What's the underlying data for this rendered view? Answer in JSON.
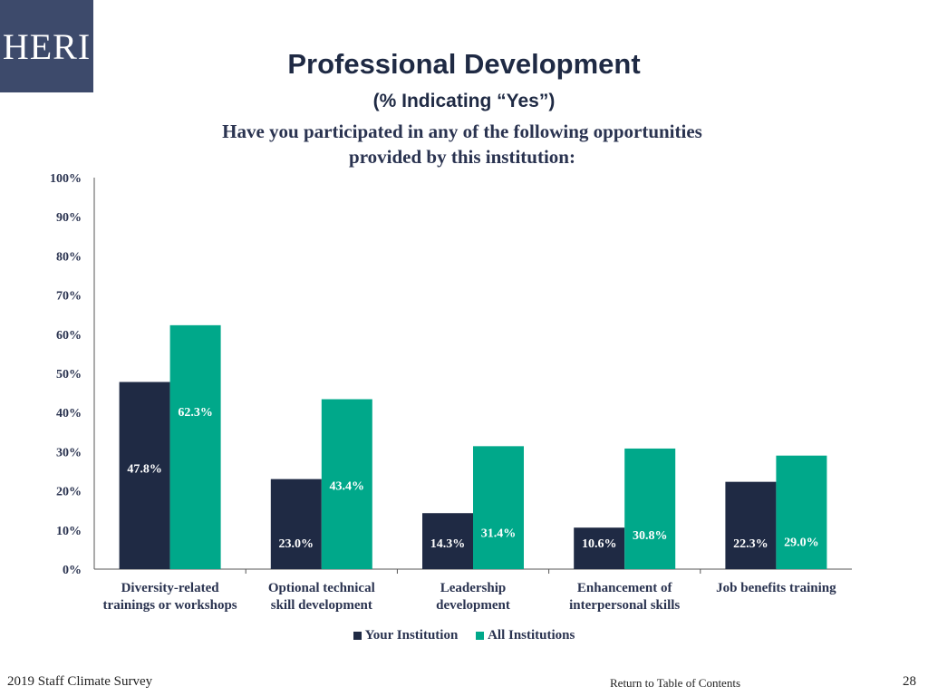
{
  "logo": {
    "text": "HERI"
  },
  "header": {
    "title": "Professional Development",
    "subtitle": "(% Indicating “Yes”)",
    "question_line1": "Have you participated in any of  the following opportunities",
    "question_line2": "provided by this institution:"
  },
  "colors": {
    "your_institution": "#1f2a44",
    "all_institutions": "#00a88a",
    "logo_bg": "#3d4a6b"
  },
  "chart_data": {
    "type": "bar",
    "categories": [
      [
        "Diversity-related",
        "trainings or workshops"
      ],
      [
        "Optional technical",
        "skill development"
      ],
      [
        "Leadership",
        "development"
      ],
      [
        "Enhancement of",
        "interpersonal skills"
      ],
      [
        "Job benefits training"
      ]
    ],
    "series": [
      {
        "name": "Your Institution",
        "values": [
          47.8,
          23.0,
          14.3,
          10.6,
          22.3
        ],
        "labels": [
          "47.8%",
          "23.0%",
          "14.3%",
          "10.6%",
          "22.3%"
        ]
      },
      {
        "name": "All Institutions",
        "values": [
          62.3,
          43.4,
          31.4,
          30.8,
          29.0
        ],
        "labels": [
          "62.3%",
          "43.4%",
          "31.4%",
          "30.8%",
          "29.0%"
        ]
      }
    ],
    "yticks": [
      "0%",
      "10%",
      "20%",
      "30%",
      "40%",
      "50%",
      "60%",
      "70%",
      "80%",
      "90%",
      "100%"
    ],
    "ylim": [
      0,
      100
    ],
    "grid": false,
    "legend_position": "bottom"
  },
  "footer": {
    "survey": "2019 Staff  Climate Survey",
    "toc_link": "Return to Table of Contents",
    "page_number": "28"
  }
}
